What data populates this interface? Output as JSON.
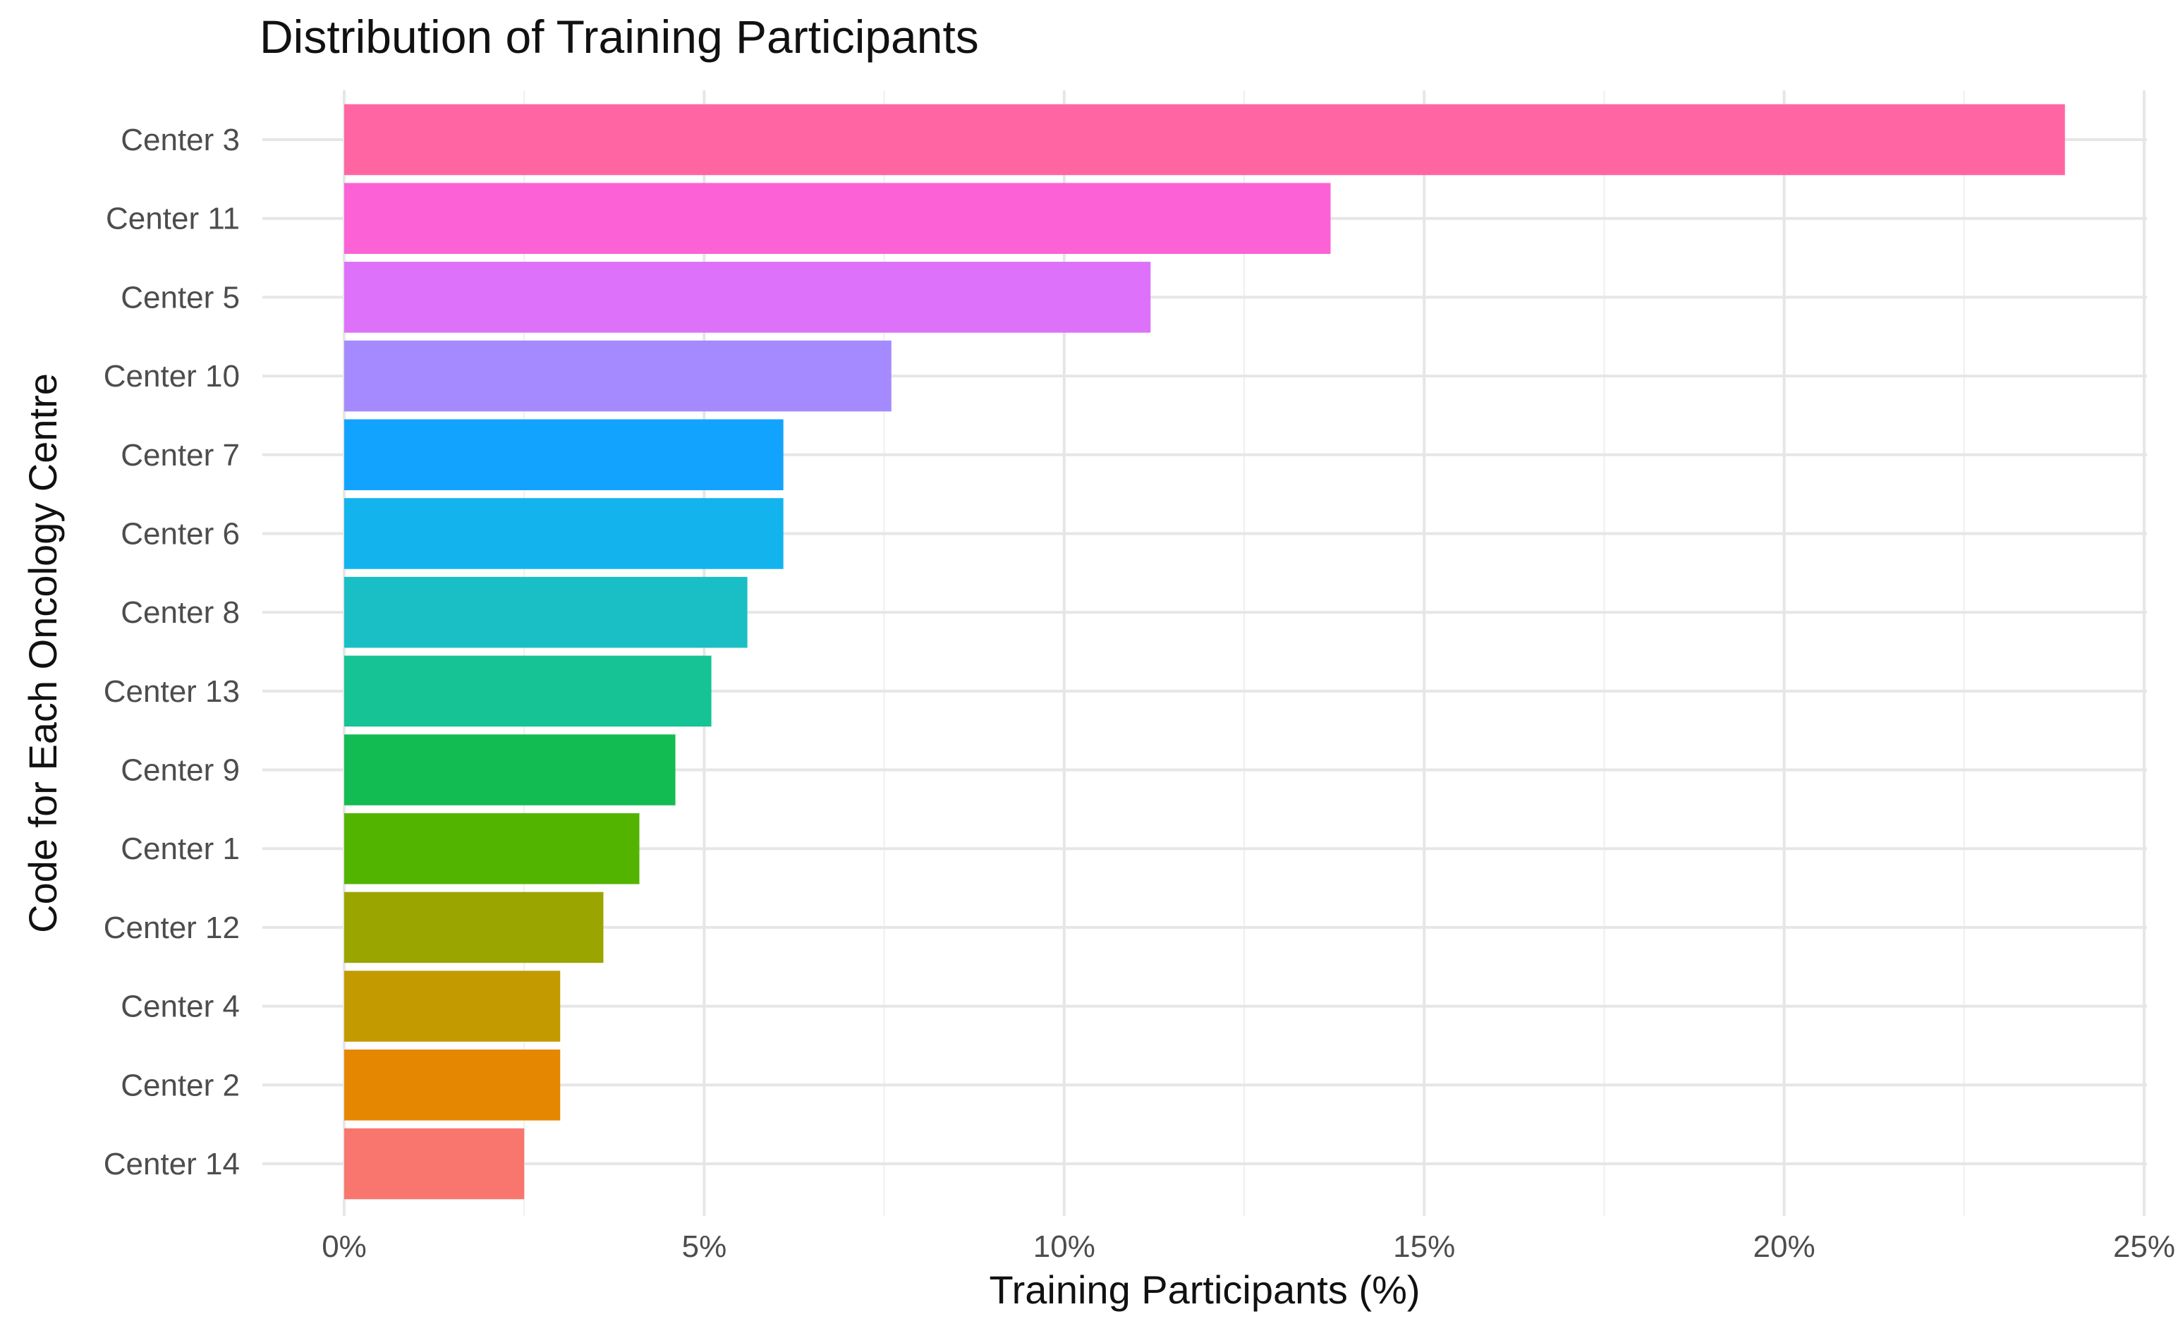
{
  "chart_data": {
    "type": "bar",
    "orientation": "horizontal",
    "title": "Distribution of Training Participants",
    "xlabel": "Training Participants (%)",
    "ylabel": "Code for Each Oncology Centre",
    "xlim": [
      0,
      25
    ],
    "xticks": [
      0,
      5,
      10,
      15,
      20,
      25
    ],
    "xtick_labels": [
      "0%",
      "5%",
      "10%",
      "15%",
      "20%",
      "25%"
    ],
    "grid": true,
    "categories": [
      "Center 3",
      "Center 11",
      "Center 5",
      "Center 10",
      "Center 7",
      "Center 6",
      "Center 8",
      "Center 13",
      "Center 9",
      "Center 1",
      "Center 12",
      "Center 4",
      "Center 2",
      "Center 14"
    ],
    "values": [
      23.9,
      13.7,
      11.2,
      7.6,
      6.1,
      6.1,
      5.6,
      5.1,
      4.6,
      4.1,
      3.6,
      3.0,
      3.0,
      2.5
    ],
    "colors": [
      "#FF65A3",
      "#FC61D5",
      "#DD71FA",
      "#A58AFF",
      "#12A3FF",
      "#13B4ED",
      "#19BFC5",
      "#16C394",
      "#13BC53",
      "#53B400",
      "#9BA500",
      "#C39A00",
      "#E58700",
      "#F8766D"
    ]
  }
}
